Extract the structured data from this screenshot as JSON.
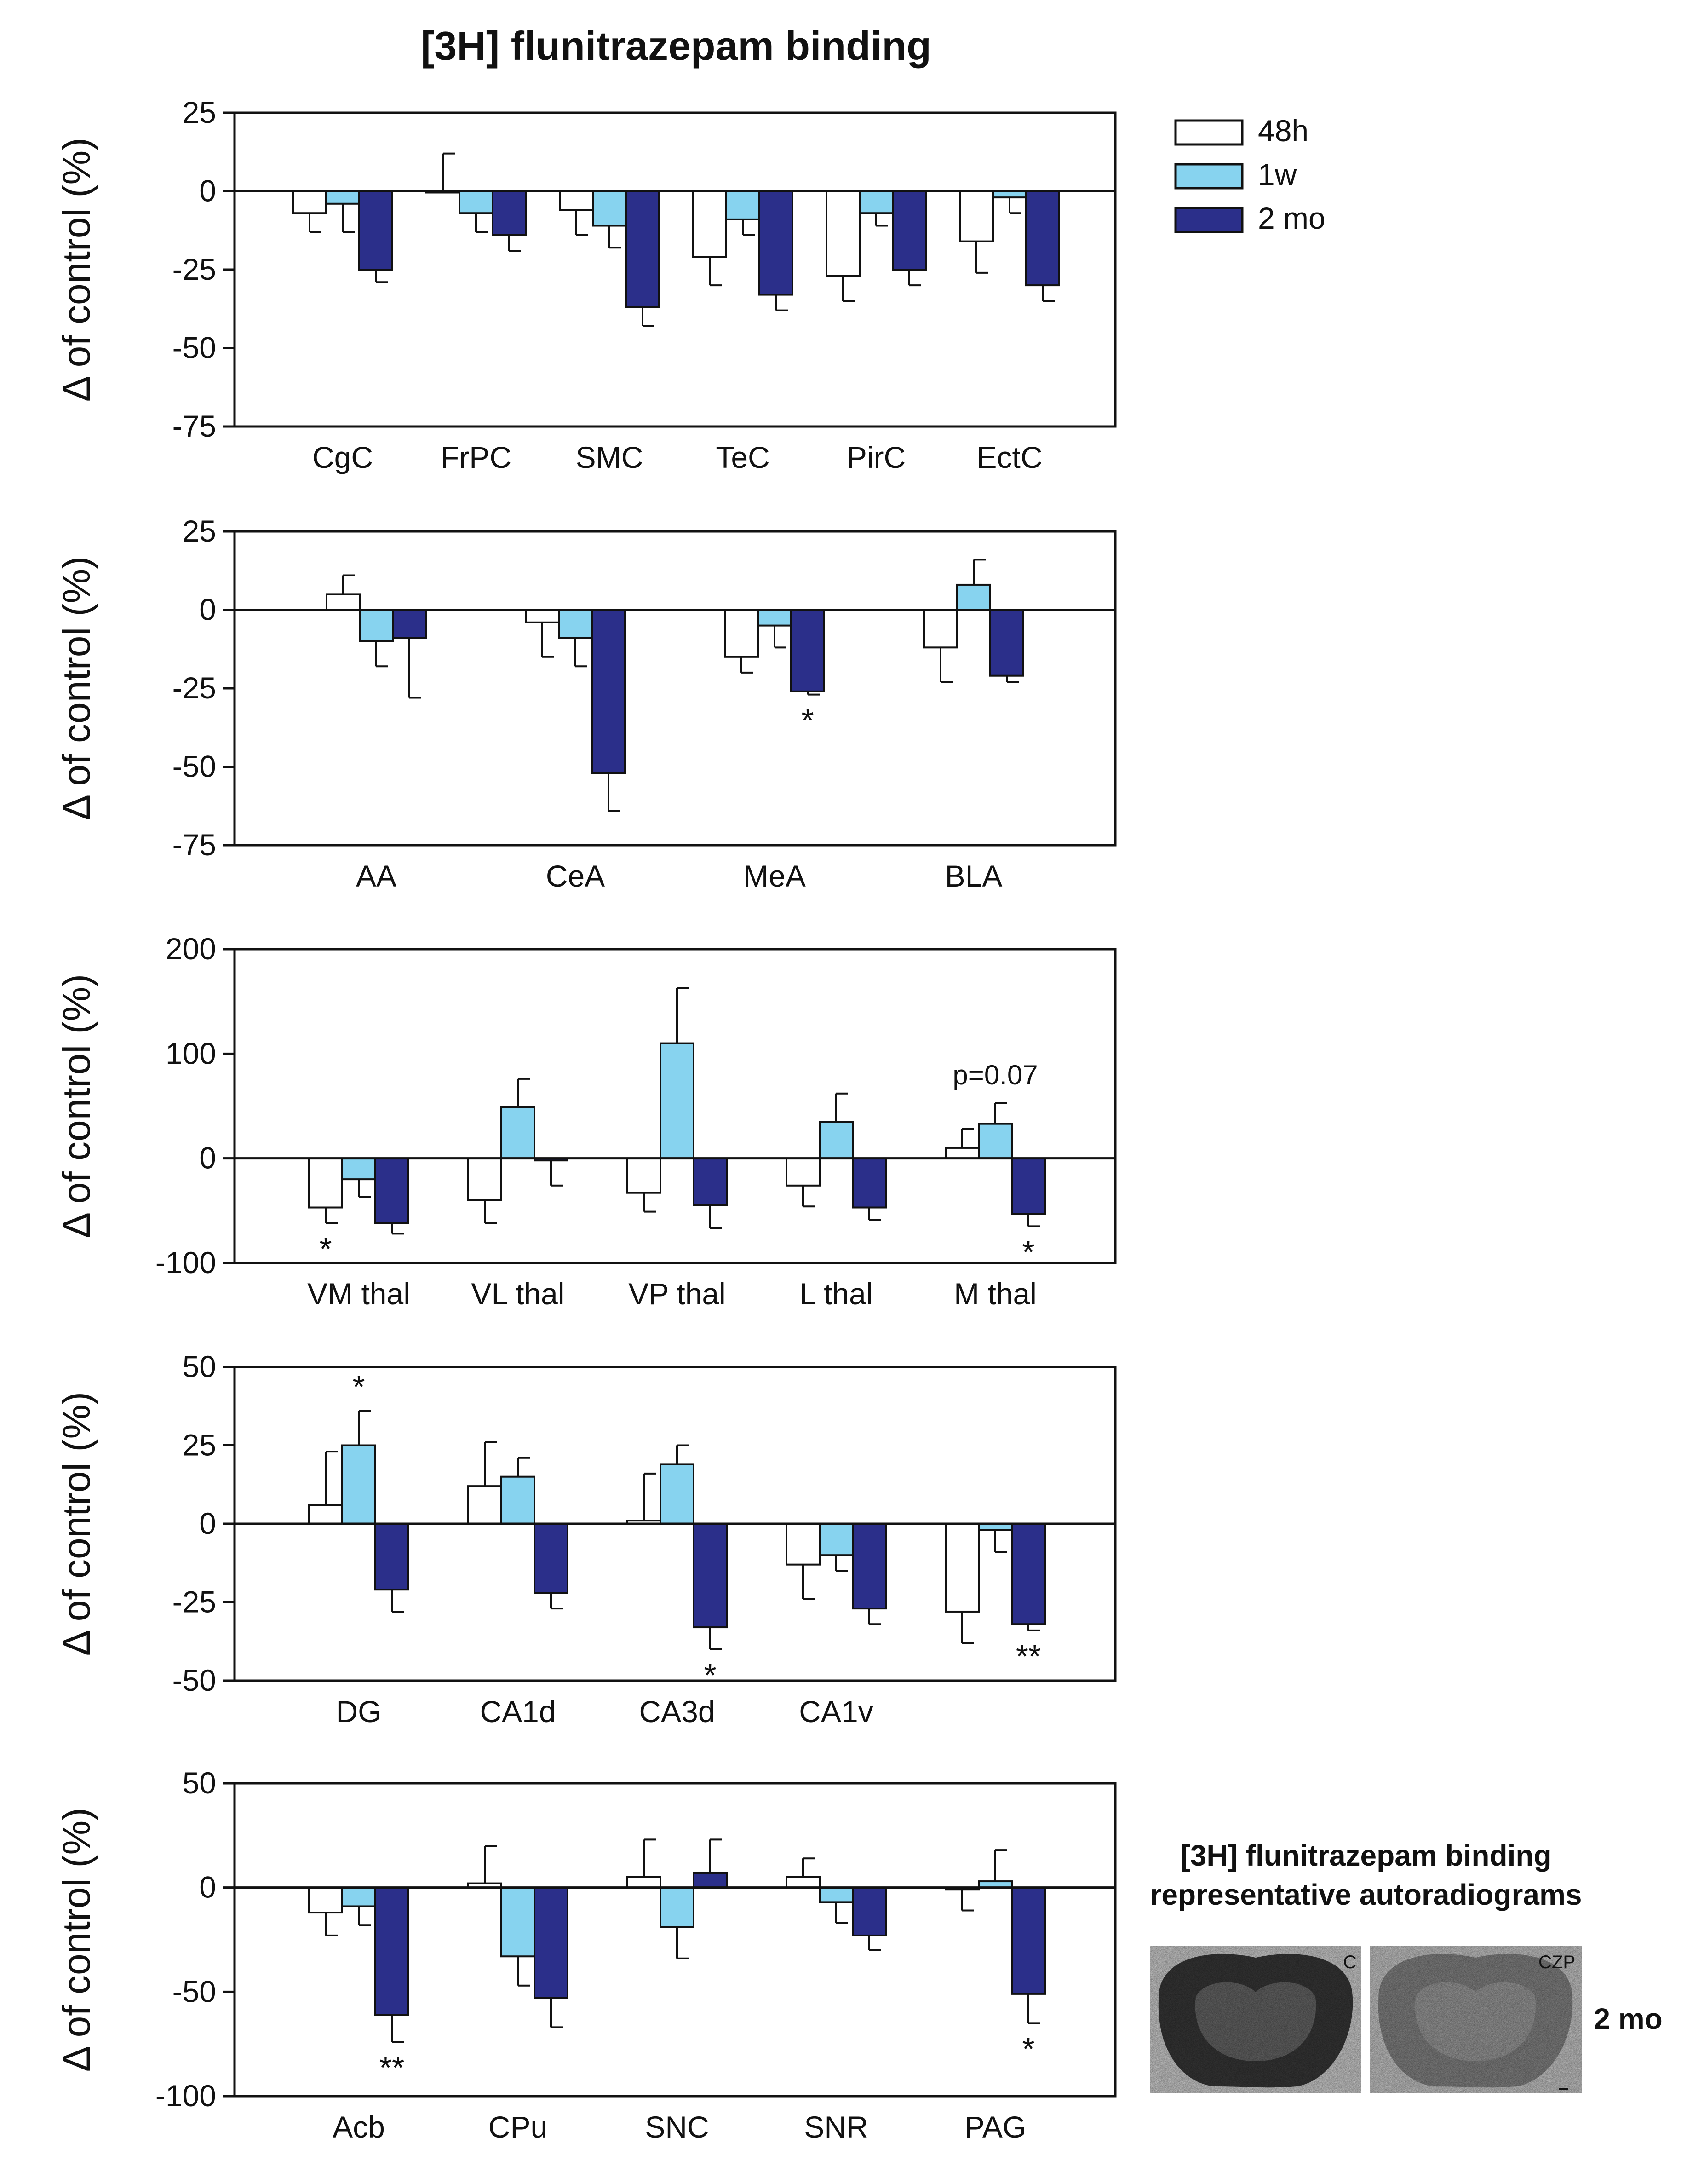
{
  "figure": {
    "title": "[3H] flunitrazepam binding",
    "legend": [
      {
        "name": "48h",
        "color": "#ffffff"
      },
      {
        "name": "1w",
        "color": "#87d3ef"
      },
      {
        "name": "2 mo",
        "color": "#2b2f8a"
      }
    ],
    "autoradiograms": {
      "title_line1": "[3H] flunitrazepam binding",
      "title_line2": "representative autoradiograms",
      "label_control": "C",
      "label_treated": "CZP",
      "row_label": "2 mo"
    }
  },
  "chart_data": [
    {
      "type": "bar",
      "ylabel": "Δ of control (%)",
      "ylim": [
        -75,
        25
      ],
      "yticks": [
        25,
        0,
        -25,
        -50,
        -75
      ],
      "categories": [
        "CgC",
        "FrPC",
        "SMC",
        "TeC",
        "PirC",
        "EctC"
      ],
      "series": [
        {
          "name": "48h",
          "values": [
            -7,
            0,
            -6,
            -21,
            -27,
            -16
          ],
          "err": [
            6,
            12,
            8,
            9,
            8,
            10
          ]
        },
        {
          "name": "1w",
          "values": [
            -4,
            -7,
            -11,
            -9,
            -7,
            -2
          ],
          "err": [
            9,
            6,
            7,
            5,
            4,
            5
          ]
        },
        {
          "name": "2 mo",
          "values": [
            -25,
            -14,
            -37,
            -33,
            -25,
            -30
          ],
          "err": [
            4,
            5,
            6,
            5,
            5,
            5
          ]
        }
      ],
      "annotations": []
    },
    {
      "type": "bar",
      "ylabel": "Δ of control (%)",
      "ylim": [
        -75,
        25
      ],
      "yticks": [
        25,
        0,
        -25,
        -50,
        -75
      ],
      "categories": [
        "AA",
        "CeA",
        "MeA",
        "BLA"
      ],
      "series": [
        {
          "name": "48h",
          "values": [
            5,
            -4,
            -15,
            -12
          ],
          "err": [
            6,
            11,
            5,
            11
          ]
        },
        {
          "name": "1w",
          "values": [
            -10,
            -9,
            -5,
            8
          ],
          "err": [
            8,
            9,
            7,
            8
          ]
        },
        {
          "name": "2 mo",
          "values": [
            -9,
            -52,
            -26,
            -21
          ],
          "err": [
            19,
            12,
            1,
            2
          ]
        }
      ],
      "annotations": [
        {
          "category": 2,
          "series": 2,
          "text": "*"
        }
      ]
    },
    {
      "type": "bar",
      "ylabel": "Δ of control (%)",
      "ylim": [
        -100,
        200
      ],
      "yticks": [
        200,
        100,
        0,
        -100
      ],
      "categories": [
        "VM thal",
        "VL thal",
        "VP thal",
        "L thal",
        "M thal"
      ],
      "series": [
        {
          "name": "48h",
          "values": [
            -47,
            -40,
            -33,
            -26,
            10
          ],
          "err": [
            15,
            22,
            18,
            20,
            18
          ]
        },
        {
          "name": "1w",
          "values": [
            -20,
            49,
            110,
            35,
            33
          ],
          "err": [
            17,
            27,
            53,
            27,
            20
          ]
        },
        {
          "name": "2 mo",
          "values": [
            -62,
            -2,
            -45,
            -47,
            -53
          ],
          "err": [
            10,
            24,
            22,
            12,
            12
          ]
        }
      ],
      "annotations": [
        {
          "category": 0,
          "series": 0,
          "text": "*"
        },
        {
          "category": 4,
          "series": 2,
          "text": "*"
        },
        {
          "category": 4,
          "series": 1,
          "text": "p=0.07"
        }
      ]
    },
    {
      "type": "bar",
      "ylabel": "Δ of control (%)",
      "ylim": [
        -50,
        50
      ],
      "yticks": [
        50,
        25,
        0,
        -25,
        -50
      ],
      "categories": [
        "DG",
        "CA1d",
        "CA3d",
        "CA1v",
        ""
      ],
      "series": [
        {
          "name": "48h",
          "values": [
            6,
            12,
            1,
            -13,
            -28
          ],
          "err": [
            17,
            14,
            15,
            11,
            10
          ]
        },
        {
          "name": "1w",
          "values": [
            25,
            15,
            19,
            -10,
            -2
          ],
          "err": [
            11,
            6,
            6,
            5,
            7
          ]
        },
        {
          "name": "2 mo",
          "values": [
            -21,
            -22,
            -33,
            -27,
            -32
          ],
          "err": [
            7,
            5,
            7,
            5,
            2
          ]
        }
      ],
      "annotations": [
        {
          "category": 0,
          "series": 1,
          "text": "*"
        },
        {
          "category": 2,
          "series": 2,
          "text": "*"
        },
        {
          "category": 4,
          "series": 2,
          "text": "**"
        }
      ]
    },
    {
      "type": "bar",
      "ylabel": "Δ of control (%)",
      "ylim": [
        -100,
        50
      ],
      "yticks": [
        50,
        0,
        -50,
        -100
      ],
      "categories": [
        "Acb",
        "CPu",
        "SNC",
        "SNR",
        "PAG"
      ],
      "series": [
        {
          "name": "48h",
          "values": [
            -12,
            2,
            5,
            5,
            -1
          ],
          "err": [
            11,
            18,
            18,
            9,
            10
          ]
        },
        {
          "name": "1w",
          "values": [
            -9,
            -33,
            -19,
            -7,
            3
          ],
          "err": [
            9,
            14,
            15,
            10,
            15
          ]
        },
        {
          "name": "2 mo",
          "values": [
            -61,
            -53,
            7,
            -23,
            -51
          ],
          "err": [
            13,
            14,
            16,
            7,
            14
          ]
        }
      ],
      "annotations": [
        {
          "category": 0,
          "series": 2,
          "text": "**"
        },
        {
          "category": 4,
          "series": 2,
          "text": "*"
        }
      ]
    }
  ]
}
